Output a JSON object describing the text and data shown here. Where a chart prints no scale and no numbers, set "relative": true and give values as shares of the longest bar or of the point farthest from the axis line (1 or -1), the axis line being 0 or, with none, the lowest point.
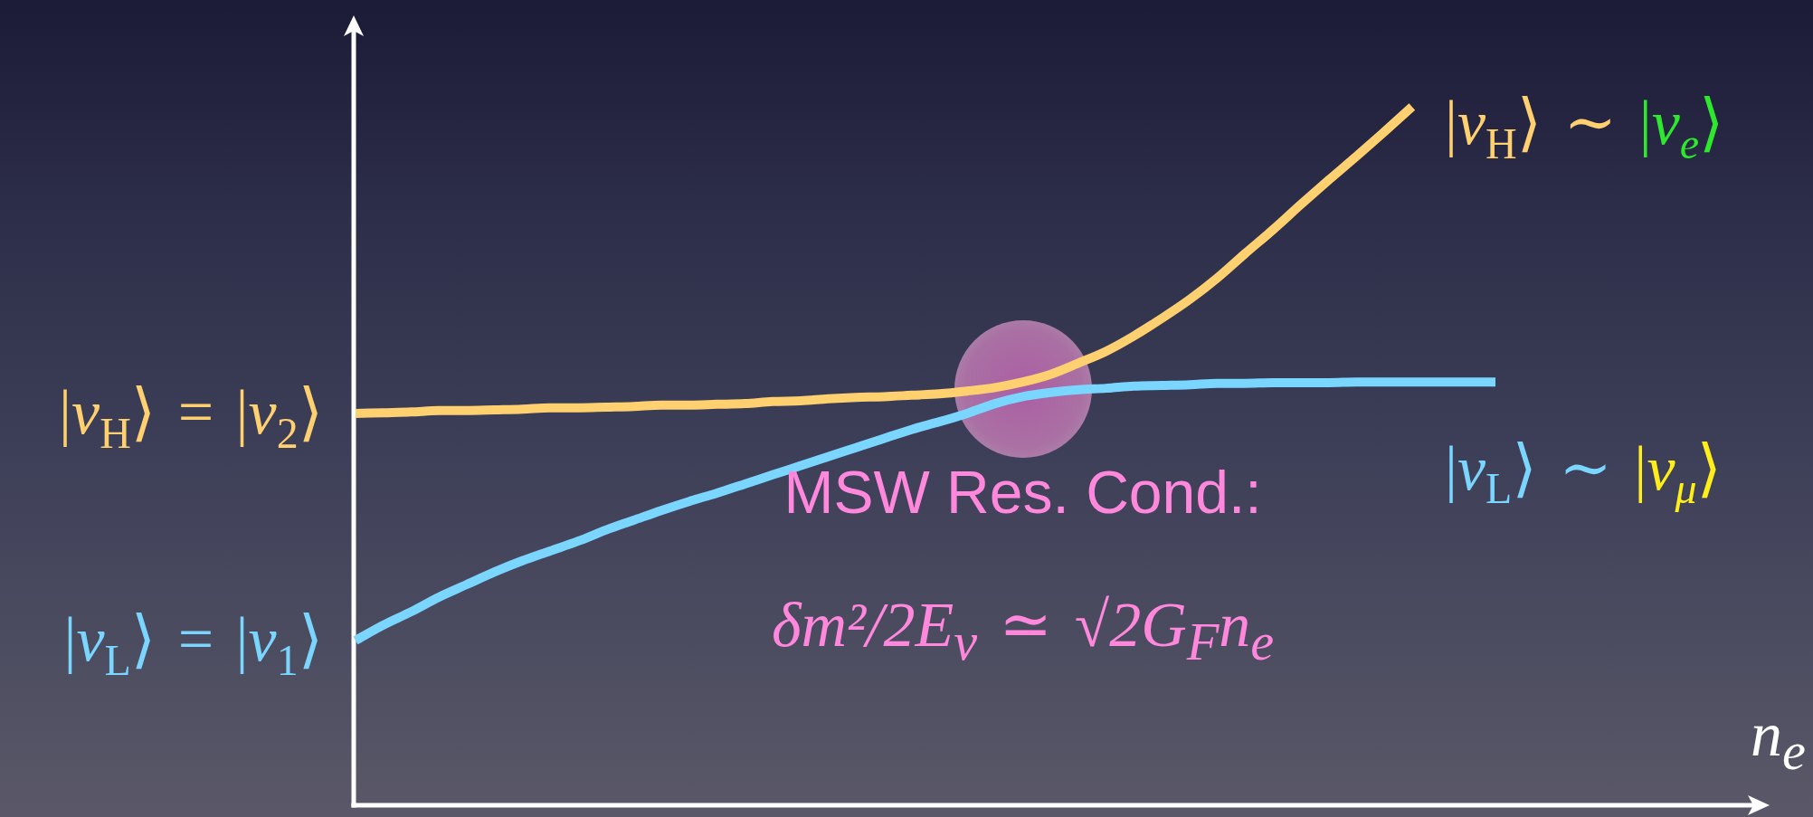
{
  "chart_data": {
    "type": "line",
    "relative": true,
    "tick_labels": false,
    "xlabel": "n$_{e}$",
    "categories": [
      null,
      null,
      null,
      null,
      null,
      null,
      null,
      null,
      null,
      null,
      null,
      null,
      null,
      null,
      null,
      null,
      null,
      null,
      null,
      null,
      null,
      null,
      null,
      null,
      null,
      null,
      null,
      null,
      null,
      null,
      null,
      null,
      null,
      null,
      null,
      null,
      null,
      null,
      null,
      null,
      null,
      null
    ],
    "series": [
      {
        "name": "|ν$_{H}$⟩ = |ν$_{2}$⟩",
        "color": "#ffd070",
        "values": [
          0.561,
          0.562,
          0.563,
          0.565,
          0.565,
          0.566,
          0.567,
          0.569,
          0.569,
          0.57,
          0.571,
          0.573,
          0.573,
          0.574,
          0.575,
          0.578,
          0.579,
          0.582,
          0.584,
          0.585,
          0.587,
          0.589,
          0.593,
          0.598,
          0.606,
          0.617,
          0.633,
          0.65,
          0.672,
          0.697,
          0.724,
          0.755,
          0.79,
          0.824,
          0.86,
          0.895,
          0.929,
          0.964,
          1.0,
          null,
          null,
          null
        ]
      },
      {
        "name": "|ν$_{L}$⟩ = |ν$_{1}$⟩",
        "color": "#7ad5ff",
        "values": [
          0.236,
          0.258,
          0.277,
          0.298,
          0.316,
          0.334,
          0.35,
          0.364,
          0.378,
          0.394,
          0.408,
          0.422,
          0.435,
          0.447,
          0.46,
          0.473,
          0.486,
          0.499,
          0.512,
          0.525,
          0.538,
          0.549,
          0.561,
          0.575,
          0.585,
          0.591,
          0.595,
          0.597,
          0.6,
          0.601,
          0.602,
          0.604,
          0.604,
          0.605,
          0.605,
          0.605,
          0.606,
          0.606,
          0.606,
          0.606,
          0.606,
          0.606
        ]
      }
    ],
    "annotations": [
      "|ν$_{H}$⟩ ∼ |ν$_{e}$⟩",
      "|ν$_{L}$⟩ ∼ |ν$_{μ}$⟩",
      "MSW Res. Cond.:",
      "δm²/2E$_{ν}$ ≃ √2G$_{F}$n$_{e}$"
    ]
  }
}
